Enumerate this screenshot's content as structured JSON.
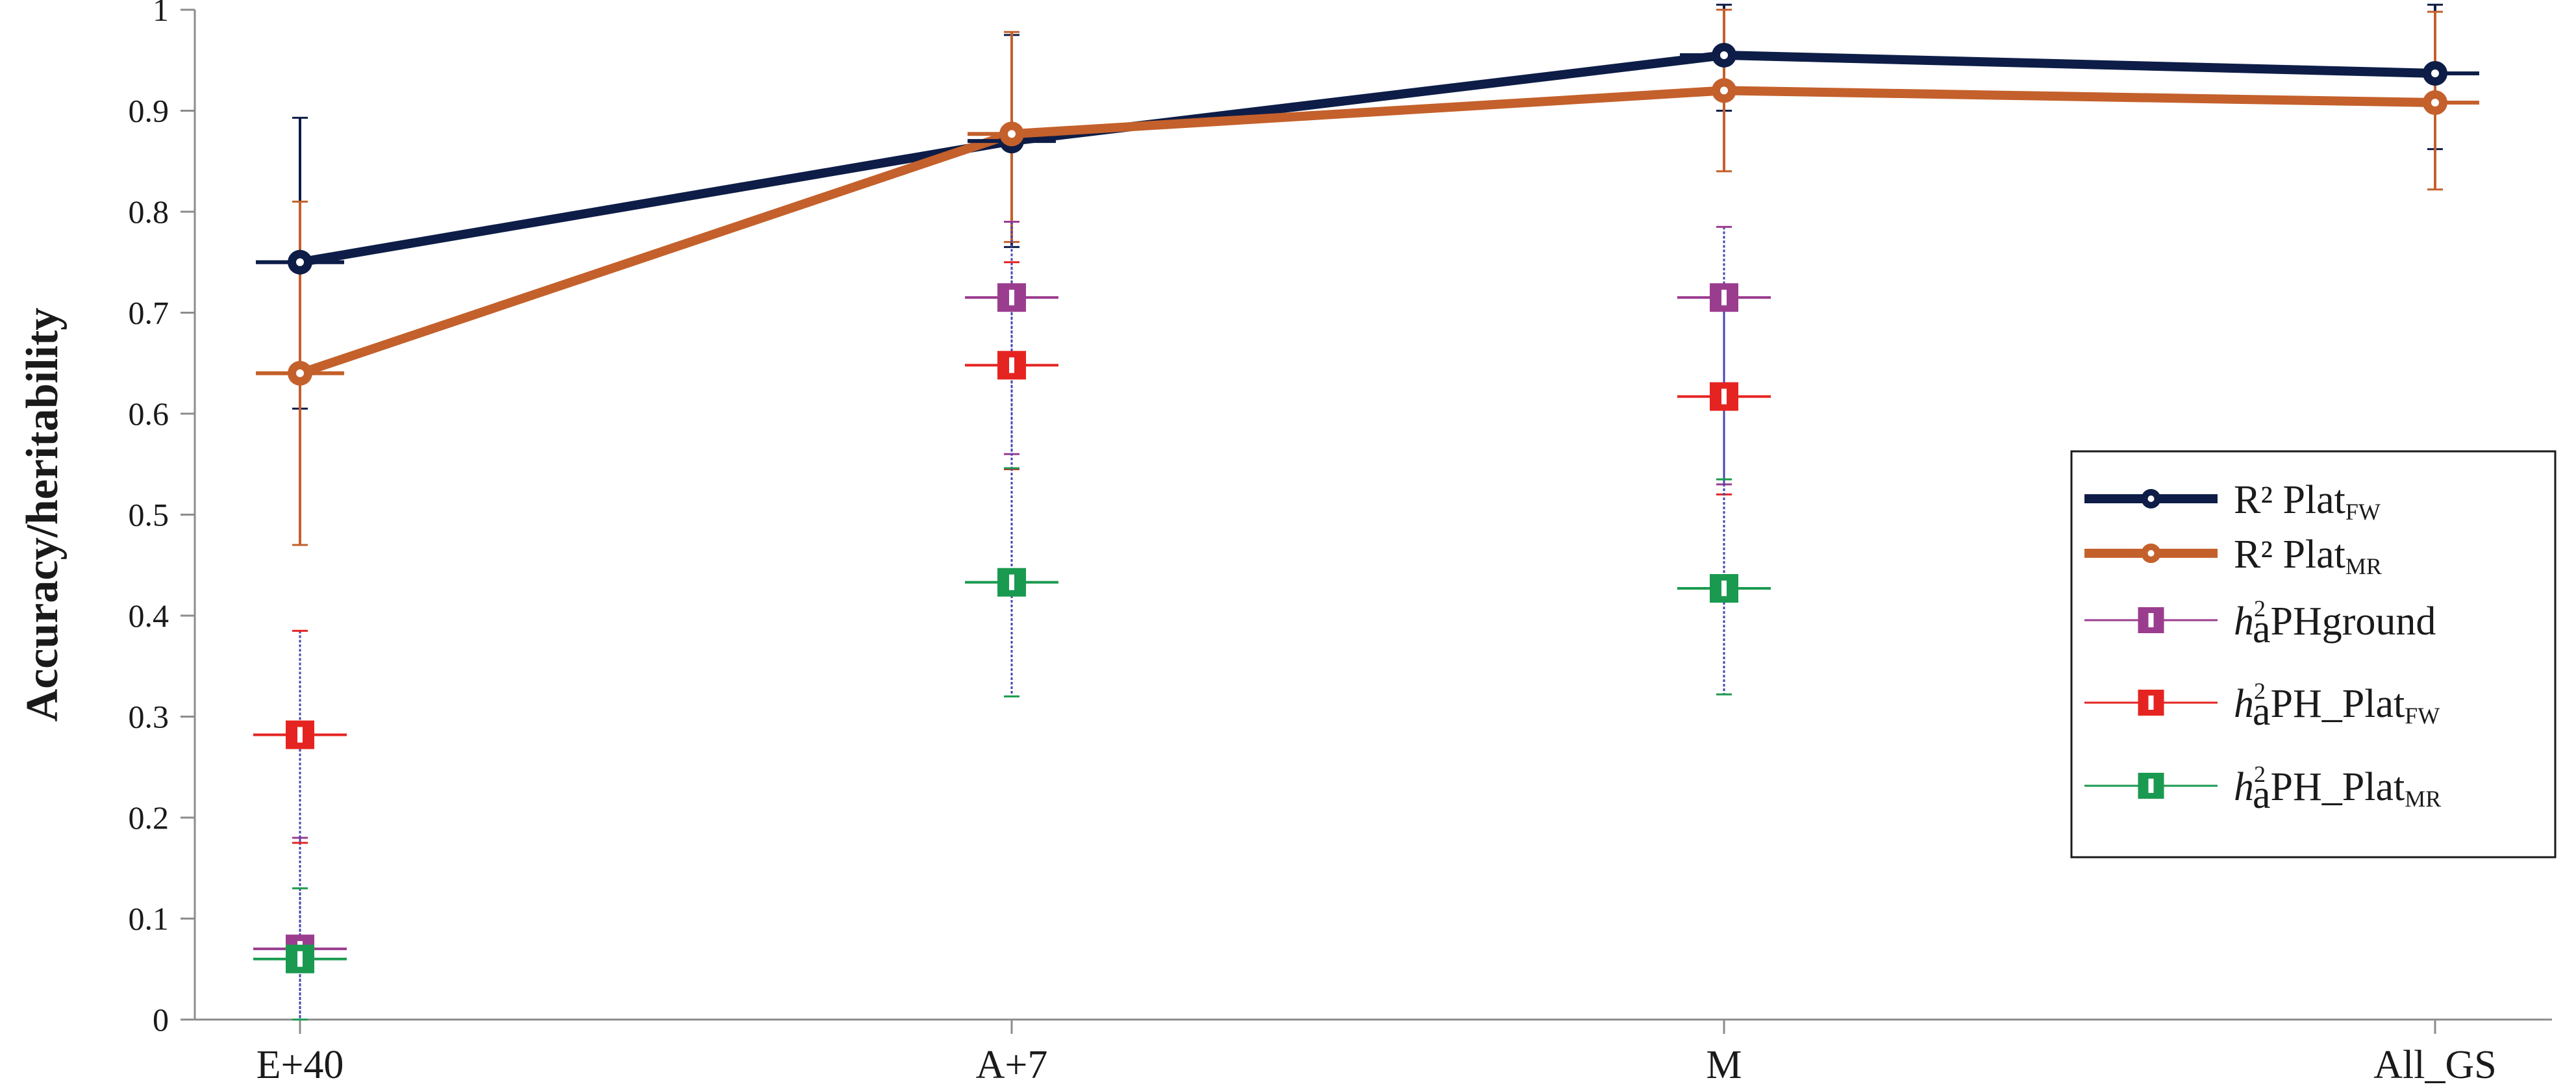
{
  "chart_data": {
    "type": "line",
    "ylabel": "Accuracy/heritability",
    "xlabel": "",
    "categories": [
      "E+40",
      "A+7",
      "M",
      "All_GS"
    ],
    "ylim": [
      0,
      1
    ],
    "yticks": [
      "0",
      "0.1",
      "0.2",
      "0.3",
      "0.4",
      "0.5",
      "0.6",
      "0.7",
      "0.8",
      "0.9",
      "1"
    ],
    "grid": false,
    "legend_position": "right",
    "series": [
      {
        "key": "r2_plat_fw",
        "legend_main": "R² Plat",
        "legend_sub": "FW",
        "kind": "line",
        "color": "#0d1d47",
        "values": [
          0.75,
          0.87,
          0.955,
          0.937
        ],
        "err_low": [
          0.605,
          0.765,
          0.9,
          0.862
        ],
        "err_high": [
          0.893,
          0.975,
          1.005,
          1.005
        ]
      },
      {
        "key": "r2_plat_mr",
        "legend_main": "R² Plat",
        "legend_sub": "MR",
        "kind": "line",
        "color": "#c4602b",
        "values": [
          0.64,
          0.877,
          0.92,
          0.908
        ],
        "err_low": [
          0.47,
          0.77,
          0.84,
          0.822
        ],
        "err_high": [
          0.81,
          0.978,
          1.0,
          0.998
        ]
      },
      {
        "key": "h2_phground",
        "legend_main": "PHground",
        "legend_sub": "",
        "kind": "marker",
        "color": "#9b3d8f",
        "values": [
          0.07,
          0.715,
          0.715,
          null
        ],
        "err_low": [
          0.0,
          0.56,
          0.53,
          null
        ],
        "err_high": [
          0.18,
          0.79,
          0.785,
          null
        ]
      },
      {
        "key": "h2_ph_plat_fw",
        "legend_main": "PH_Plat",
        "legend_sub": "FW",
        "kind": "marker",
        "color": "#e52421",
        "values": [
          0.282,
          0.648,
          0.617,
          null
        ],
        "err_low": [
          0.175,
          0.545,
          0.52,
          null
        ],
        "err_high": [
          0.385,
          0.75,
          0.715,
          null
        ]
      },
      {
        "key": "h2_ph_plat_mr",
        "legend_main": "PH_Plat",
        "legend_sub": "MR",
        "kind": "marker",
        "color": "#1a9a50",
        "values": [
          0.06,
          0.433,
          0.427,
          null
        ],
        "err_low": [
          0.0,
          0.32,
          0.322,
          null
        ],
        "err_high": [
          0.13,
          0.546,
          0.535,
          null
        ]
      }
    ],
    "h2_label": {
      "base": "h",
      "sup": "2",
      "sub": "a"
    }
  }
}
